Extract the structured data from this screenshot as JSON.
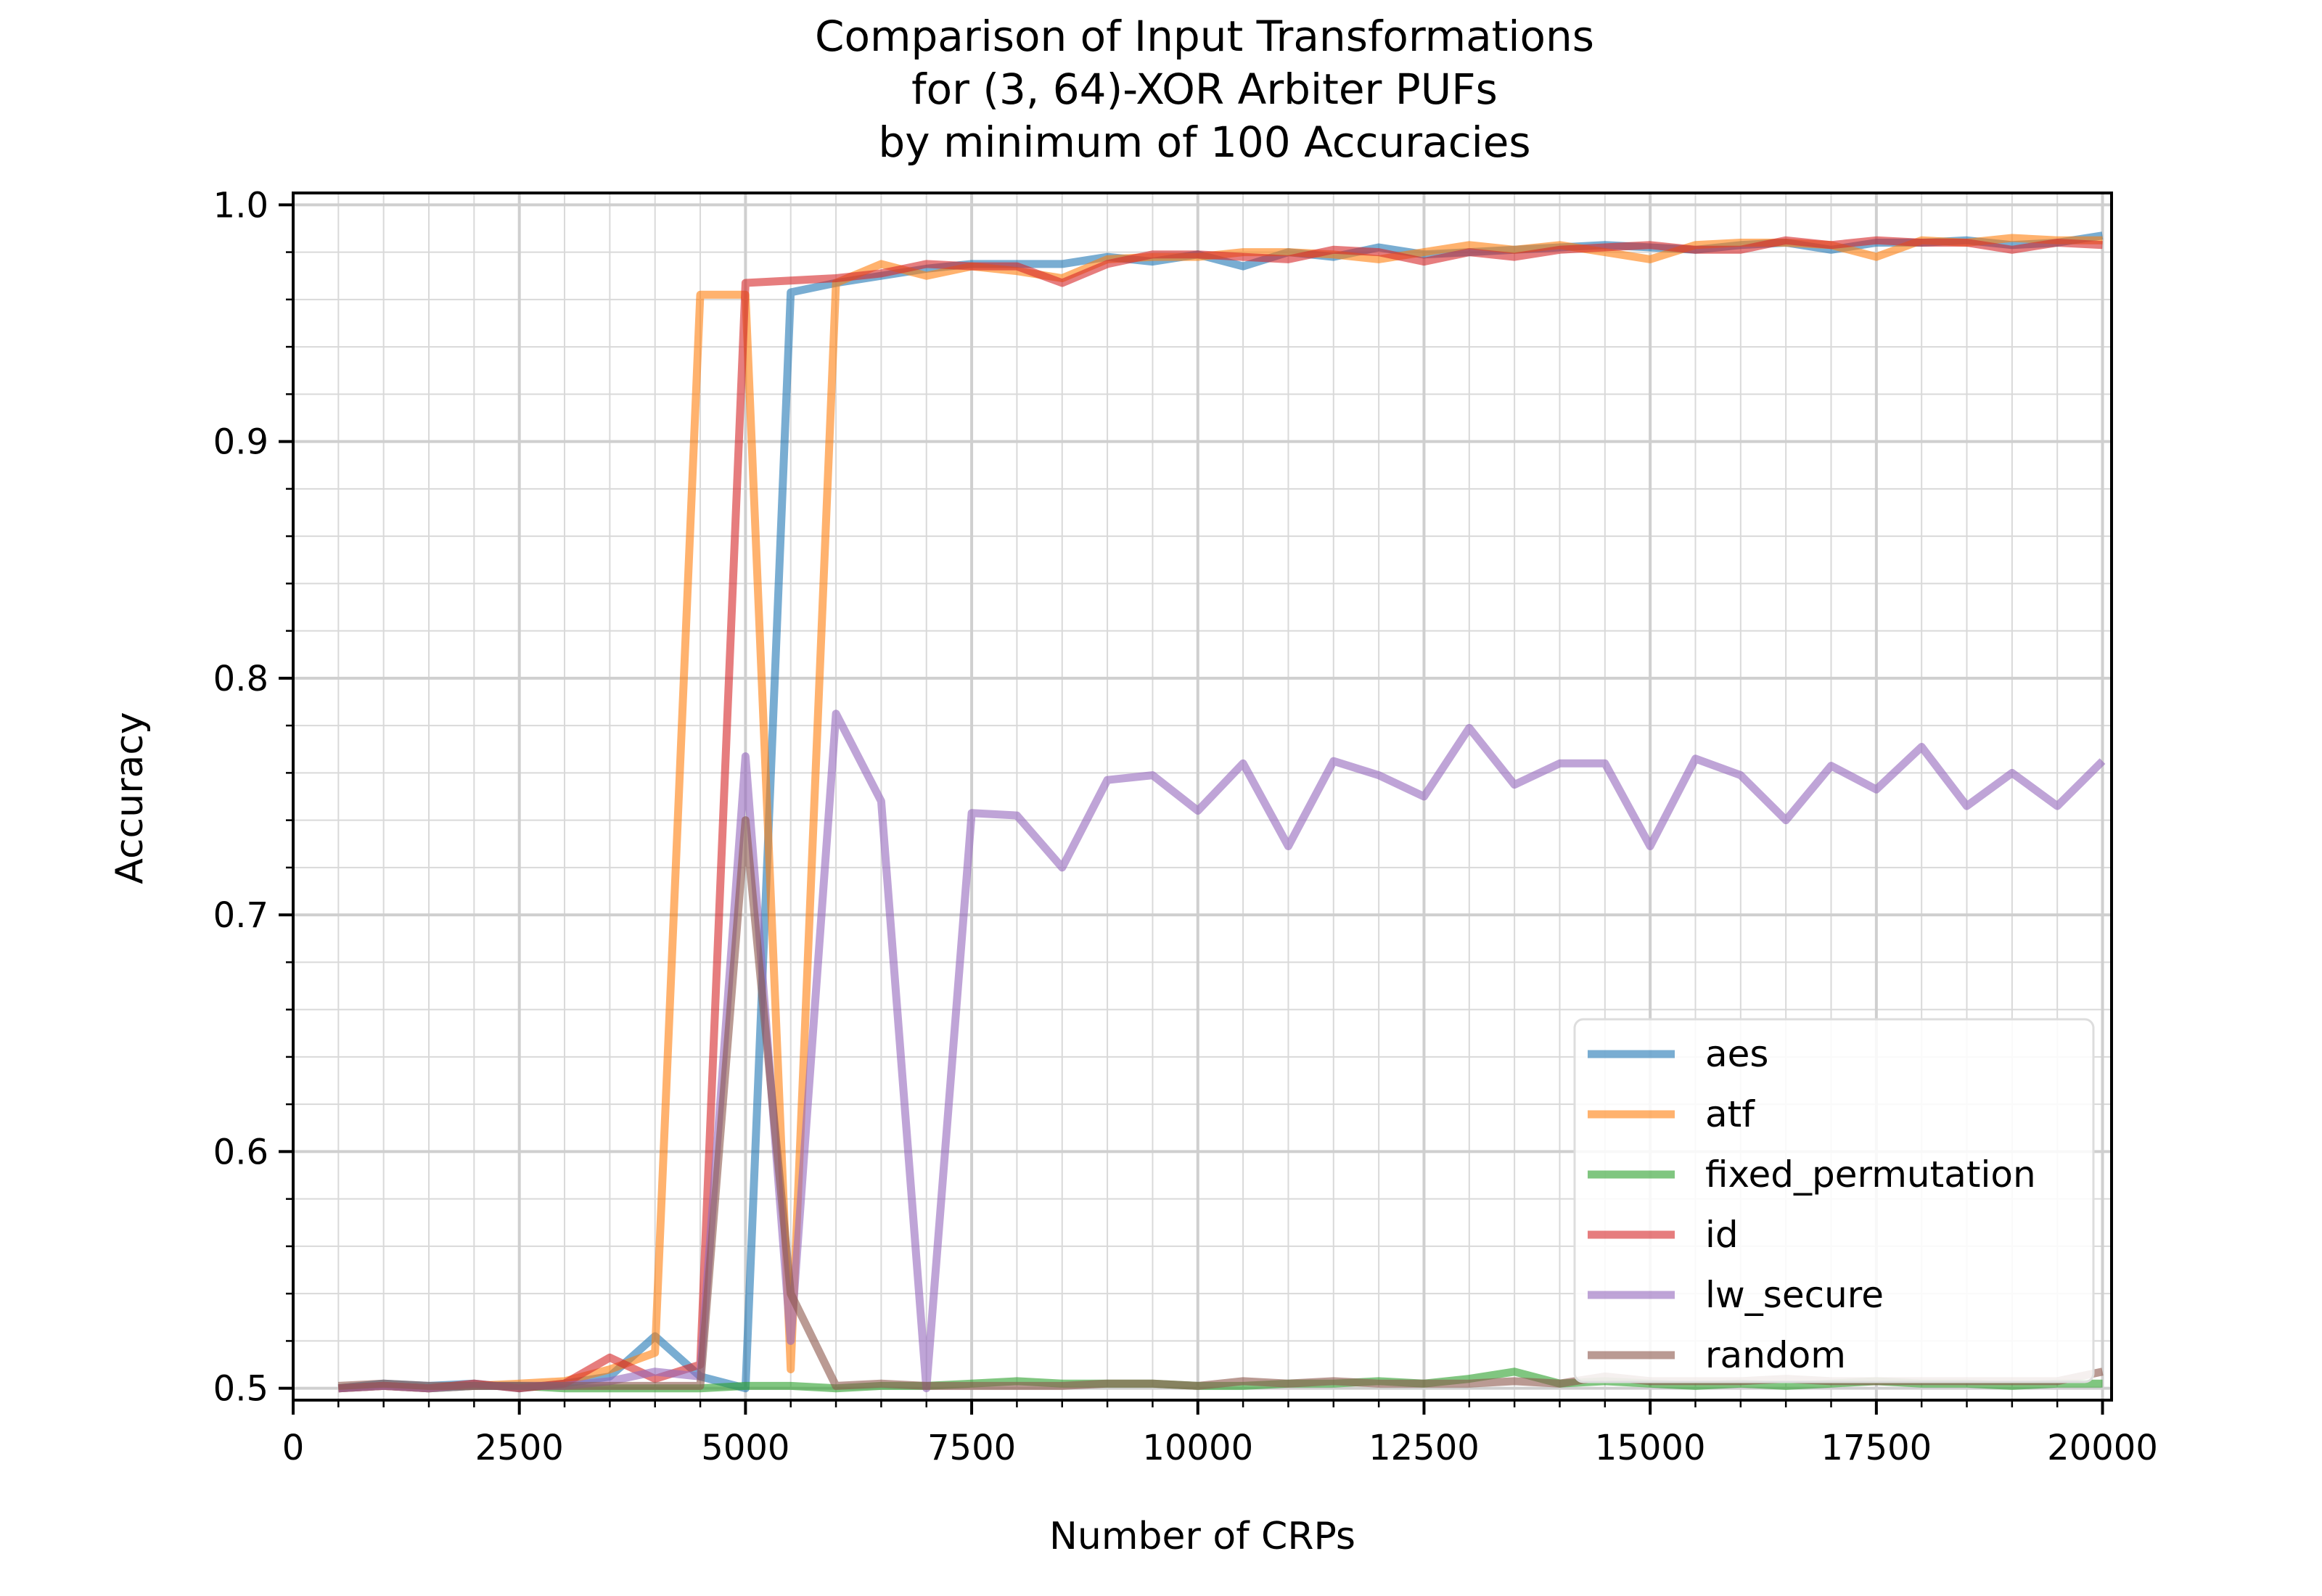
{
  "chart_data": {
    "type": "line",
    "title_lines": [
      "Comparison of Input Transformations",
      "for (3, 64)-XOR Arbiter PUFs",
      "by minimum of 100 Accuracies"
    ],
    "xlabel": "Number of CRPs",
    "ylabel": "Accuracy",
    "xlim": [
      0,
      20100
    ],
    "ylim": [
      0.495,
      1.005
    ],
    "xticks": [
      "0",
      "2500",
      "5000",
      "7500",
      "10000",
      "12500",
      "15000",
      "17500",
      "20000"
    ],
    "yticks": [
      "0.5",
      "0.6",
      "0.7",
      "0.8",
      "0.9",
      "1.0"
    ],
    "grid": true,
    "legend_position": "lower-right",
    "x": [
      500,
      1000,
      1500,
      2000,
      2500,
      3000,
      3500,
      4000,
      4500,
      5000,
      5500,
      6000,
      6500,
      7000,
      7500,
      8000,
      8500,
      9000,
      9500,
      10000,
      10500,
      11000,
      11500,
      12000,
      12500,
      13000,
      13500,
      14000,
      14500,
      15000,
      15500,
      16000,
      16500,
      17000,
      17500,
      18000,
      18500,
      19000,
      19500,
      20000
    ],
    "series": [
      {
        "name": "aes",
        "color": "#1f77b4",
        "values": [
          0.5,
          0.502,
          0.501,
          0.502,
          0.5,
          0.502,
          0.505,
          0.522,
          0.505,
          0.5,
          0.963,
          0.967,
          0.97,
          0.973,
          0.975,
          0.975,
          0.975,
          0.978,
          0.976,
          0.979,
          0.974,
          0.98,
          0.978,
          0.982,
          0.979,
          0.98,
          0.981,
          0.982,
          0.983,
          0.982,
          0.981,
          0.983,
          0.984,
          0.981,
          0.984,
          0.984,
          0.985,
          0.983,
          0.984,
          0.987
        ]
      },
      {
        "name": "atf",
        "color": "#ff7f0e",
        "values": [
          0.5,
          0.501,
          0.5,
          0.501,
          0.502,
          0.503,
          0.508,
          0.515,
          0.962,
          0.962,
          0.508,
          0.967,
          0.975,
          0.97,
          0.974,
          0.972,
          0.969,
          0.977,
          0.978,
          0.978,
          0.98,
          0.98,
          0.979,
          0.977,
          0.98,
          0.983,
          0.981,
          0.983,
          0.98,
          0.977,
          0.983,
          0.984,
          0.984,
          0.983,
          0.978,
          0.985,
          0.984,
          0.986,
          0.985,
          0.985
        ]
      },
      {
        "name": "fixed_permutation",
        "color": "#2ca02c",
        "values": [
          0.5,
          0.501,
          0.5,
          0.501,
          0.501,
          0.5,
          0.5,
          0.5,
          0.5,
          0.501,
          0.501,
          0.5,
          0.501,
          0.501,
          0.502,
          0.503,
          0.502,
          0.502,
          0.502,
          0.501,
          0.501,
          0.502,
          0.502,
          0.503,
          0.502,
          0.504,
          0.507,
          0.502,
          0.503,
          0.502,
          0.501,
          0.502,
          0.501,
          0.502,
          0.503,
          0.502,
          0.502,
          0.501,
          0.502,
          0.502
        ]
      },
      {
        "name": "id",
        "color": "#d62728",
        "values": [
          0.5,
          0.501,
          0.5,
          0.502,
          0.5,
          0.502,
          0.513,
          0.504,
          0.51,
          0.967,
          0.968,
          0.969,
          0.971,
          0.975,
          0.974,
          0.974,
          0.967,
          0.975,
          0.979,
          0.979,
          0.978,
          0.977,
          0.981,
          0.98,
          0.976,
          0.98,
          0.978,
          0.981,
          0.982,
          0.983,
          0.981,
          0.981,
          0.985,
          0.983,
          0.985,
          0.984,
          0.984,
          0.981,
          0.984,
          0.983
        ]
      },
      {
        "name": "lw_secure",
        "color": "#9467bd",
        "values": [
          0.5,
          0.501,
          0.5,
          0.501,
          0.501,
          0.501,
          0.503,
          0.507,
          0.505,
          0.767,
          0.52,
          0.785,
          0.748,
          0.5,
          0.743,
          0.742,
          0.72,
          0.757,
          0.759,
          0.744,
          0.764,
          0.729,
          0.765,
          0.759,
          0.75,
          0.779,
          0.755,
          0.764,
          0.764,
          0.729,
          0.766,
          0.759,
          0.74,
          0.763,
          0.753,
          0.771,
          0.746,
          0.76,
          0.746,
          0.765
        ]
      },
      {
        "name": "random",
        "color": "#8c564b",
        "values": [
          0.501,
          0.502,
          0.501,
          0.501,
          0.501,
          0.501,
          0.501,
          0.501,
          0.501,
          0.74,
          0.54,
          0.501,
          0.502,
          0.501,
          0.501,
          0.501,
          0.501,
          0.502,
          0.502,
          0.501,
          0.503,
          0.502,
          0.503,
          0.502,
          0.502,
          0.502,
          0.503,
          0.502,
          0.505,
          0.503,
          0.503,
          0.503,
          0.504,
          0.503,
          0.503,
          0.503,
          0.503,
          0.503,
          0.503,
          0.507
        ]
      }
    ]
  }
}
